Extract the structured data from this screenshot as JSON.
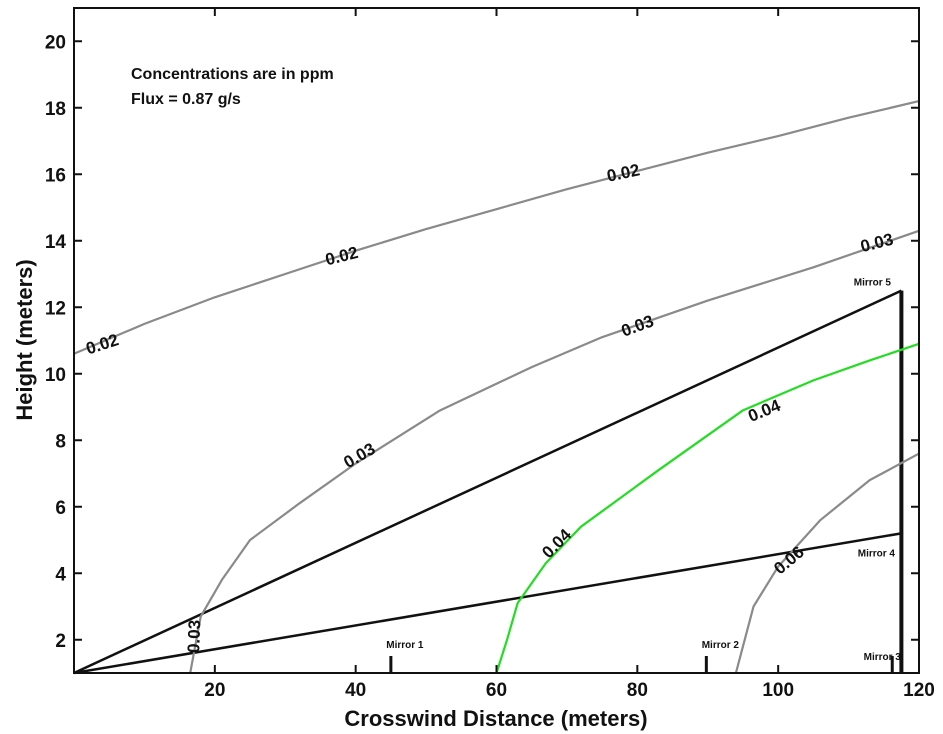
{
  "chart_data": {
    "type": "line",
    "title": "",
    "xlabel": "Crosswind Distance (meters)",
    "ylabel": "Height (meters)",
    "xlim": [
      0,
      120
    ],
    "ylim": [
      1,
      21
    ],
    "xticks": [
      20,
      40,
      60,
      80,
      100,
      120
    ],
    "yticks": [
      2,
      4,
      6,
      8,
      10,
      12,
      14,
      16,
      18,
      20
    ],
    "grid": false,
    "annotations": [
      "Concentrations are in ppm",
      "Flux = 0.87 g/s"
    ],
    "contours": [
      {
        "level": "0.02",
        "color": "#8a8a8a",
        "x": [
          0,
          10,
          20,
          30,
          40,
          50,
          60,
          70,
          80,
          90,
          100,
          110,
          120
        ],
        "y": [
          10.6,
          11.5,
          12.3,
          13.0,
          13.7,
          14.35,
          14.95,
          15.55,
          16.1,
          16.65,
          17.15,
          17.7,
          18.2
        ],
        "labels": [
          {
            "x": 4,
            "y": 10.9,
            "angle": -18
          },
          {
            "x": 38,
            "y": 13.55,
            "angle": -14
          },
          {
            "x": 78,
            "y": 16.05,
            "angle": -12
          }
        ]
      },
      {
        "level": "0.03",
        "color": "#8a8a8a",
        "x": [
          16.5,
          18,
          21,
          25,
          32,
          40,
          52,
          65,
          75,
          90,
          105,
          120
        ],
        "y": [
          1.0,
          2.7,
          3.8,
          5.0,
          6.1,
          7.3,
          8.9,
          10.2,
          11.1,
          12.2,
          13.2,
          14.3
        ],
        "labels": [
          {
            "x": 17,
            "y": 2.1,
            "angle": -88
          },
          {
            "x": 40.5,
            "y": 7.55,
            "angle": -30
          },
          {
            "x": 80,
            "y": 11.45,
            "angle": -20
          },
          {
            "x": 114,
            "y": 13.95,
            "angle": -14
          }
        ]
      },
      {
        "level": "0.04",
        "color": "#22dd22",
        "x": [
          60,
          61.5,
          63,
          67,
          72,
          83,
          95,
          105,
          113,
          120
        ],
        "y": [
          1.0,
          2.0,
          3.1,
          4.3,
          5.4,
          7.1,
          8.9,
          9.8,
          10.4,
          10.9
        ],
        "labels": [
          {
            "x": 68.5,
            "y": 4.9,
            "angle": -45
          },
          {
            "x": 98,
            "y": 8.9,
            "angle": -22
          }
        ]
      },
      {
        "level": "0.06",
        "color": "#8a8a8a",
        "x": [
          94,
          96.5,
          100,
          106,
          113,
          120
        ],
        "y": [
          1.0,
          3.0,
          4.2,
          5.6,
          6.8,
          7.6
        ],
        "labels": [
          {
            "x": 101.5,
            "y": 4.4,
            "angle": -40
          }
        ]
      }
    ],
    "beam_paths": [
      {
        "x": [
          0,
          117.5
        ],
        "y": [
          1.0,
          12.5
        ]
      },
      {
        "x": [
          0,
          117.5
        ],
        "y": [
          1.0,
          5.2
        ]
      }
    ],
    "tower": {
      "x": 117.5,
      "y": [
        1.0,
        12.5
      ]
    },
    "mirrors": [
      {
        "name": "Mirror 1",
        "x": 45,
        "y": 1.0
      },
      {
        "name": "Mirror 2",
        "x": 89.8,
        "y": 1.0
      },
      {
        "name": "Mirror 3",
        "x": 116.2,
        "y": 1.0
      },
      {
        "name": "Mirror 4",
        "x": 117.5,
        "y": 5.2
      },
      {
        "name": "Mirror 5",
        "x": 117.5,
        "y": 12.5
      }
    ]
  }
}
